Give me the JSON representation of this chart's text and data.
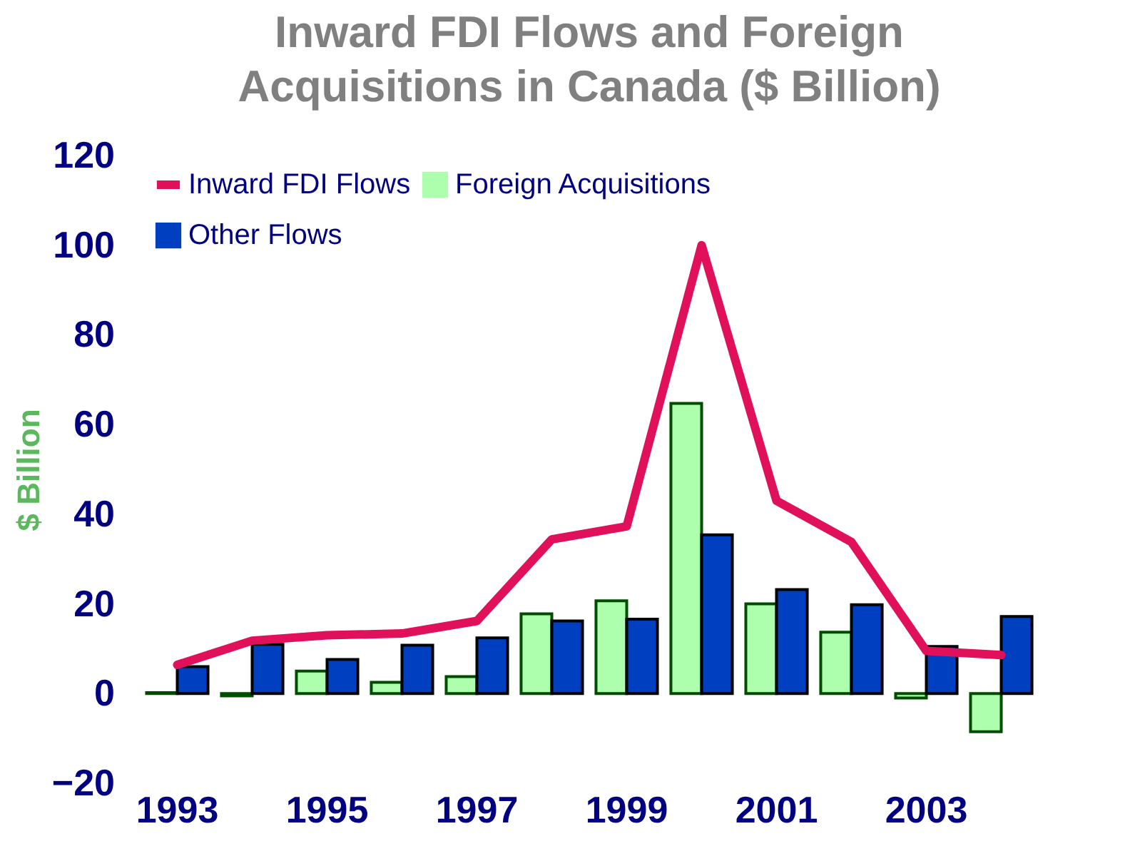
{
  "chart_data": {
    "type": "bar",
    "title": "Inward FDI Flows and Foreign Acquisitions in Canada ($ Billion)",
    "ylabel": "$ Billion",
    "categories": [
      "1993",
      null,
      "1995",
      null,
      "1997",
      null,
      "1999",
      null,
      "2001",
      null,
      "2003",
      null
    ],
    "series": [
      {
        "name": "Inward FDI Flows",
        "type": "line",
        "color": "#e0105a",
        "values": [
          6.4,
          11.8,
          13,
          13.4,
          16.2,
          34.4,
          37.3,
          100,
          43,
          33.8,
          9.5,
          8.6
        ]
      },
      {
        "name": "Foreign Acquisitions",
        "color": "#adffad",
        "values": [
          0.2,
          -0.5,
          5,
          2.5,
          3.8,
          17.8,
          20.7,
          64.7,
          20,
          13.7,
          -1,
          -8.5
        ]
      },
      {
        "name": "Other Flows",
        "color": "#0040c0",
        "values": [
          6,
          11,
          7.6,
          10.8,
          12.4,
          16.2,
          16.6,
          35.4,
          23.2,
          19.8,
          10.5,
          17.2
        ]
      }
    ],
    "ylim": [
      -20,
      120
    ],
    "yticks": [
      -20,
      0,
      20,
      40,
      60,
      80,
      100,
      120
    ],
    "grid": false,
    "legend": "top left"
  }
}
